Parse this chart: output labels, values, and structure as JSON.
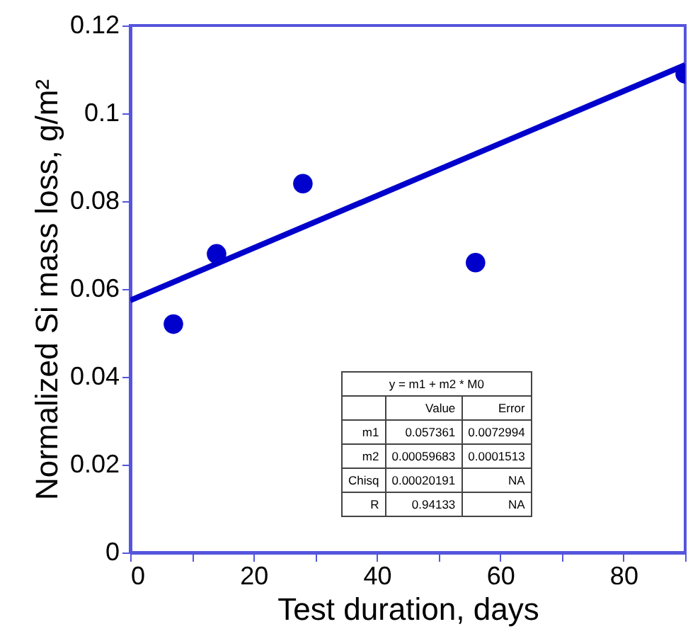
{
  "chart_data": {
    "type": "scatter",
    "xlabel": "Test duration, days",
    "ylabel": "Normalized Si mass loss, g/m²",
    "xlim": [
      0,
      90
    ],
    "ylim": [
      0,
      0.12
    ],
    "xticks": [
      0,
      {
        "value": 10,
        "label": null
      },
      20,
      {
        "value": 30,
        "label": null
      },
      40,
      {
        "value": 50,
        "label": null
      },
      60,
      {
        "value": 70,
        "label": null
      },
      80,
      {
        "value": 90,
        "label": null
      }
    ],
    "yticks": [
      0,
      0.02,
      0.04,
      0.06,
      0.08,
      0.1,
      0.12
    ],
    "grid": false,
    "marker": "circle",
    "series": [
      {
        "type": "line",
        "color": "#0000cc",
        "x": [
          0,
          90
        ],
        "values": [
          0.0574,
          0.111
        ],
        "marker": "none",
        "line_style": "solid"
      },
      {
        "color": "#0000cc",
        "x": [
          7,
          14,
          28,
          56,
          90
        ],
        "values": [
          0.052,
          0.068,
          0.084,
          0.066,
          0.109
        ]
      }
    ],
    "annotations": [
      "y = m1 + m2 * M0",
      "Value",
      "Error",
      "m1",
      "0.057361",
      "0.0072994",
      "m2",
      "0.00059683",
      "0.0001513",
      "Chisq",
      "0.00020191",
      "NA",
      "R",
      "0.94133",
      "NA"
    ]
  }
}
